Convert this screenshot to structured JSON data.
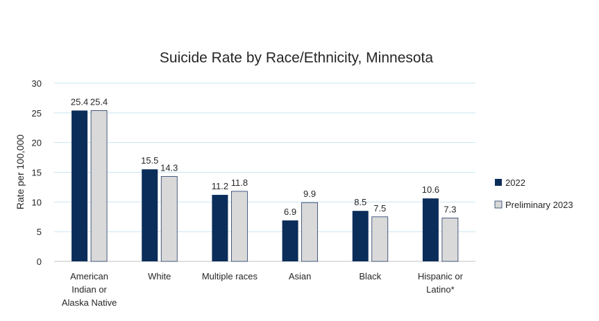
{
  "chart_data": {
    "type": "bar",
    "title": "Suicide Rate by Race/Ethnicity, Minnesota",
    "ylabel": "Rate per 100,000",
    "xlabel": "",
    "ylim": [
      0,
      30
    ],
    "yticks": [
      0,
      5,
      10,
      15,
      20,
      25,
      30
    ],
    "grid": true,
    "legend_position": "right",
    "categories": [
      [
        "American",
        "Indian or",
        "Alaska Native"
      ],
      [
        "White"
      ],
      [
        "Multiple races"
      ],
      [
        "Asian"
      ],
      [
        "Black"
      ],
      [
        "Hispanic or",
        "Latino*"
      ]
    ],
    "series": [
      {
        "name": "2022",
        "color": "#0b2d5a",
        "values": [
          25.4,
          15.5,
          11.2,
          6.9,
          8.5,
          10.6
        ]
      },
      {
        "name": "Preliminary 2023",
        "color": "#d9d9d9",
        "values": [
          25.4,
          14.3,
          11.8,
          9.9,
          7.5,
          7.3
        ]
      }
    ]
  }
}
